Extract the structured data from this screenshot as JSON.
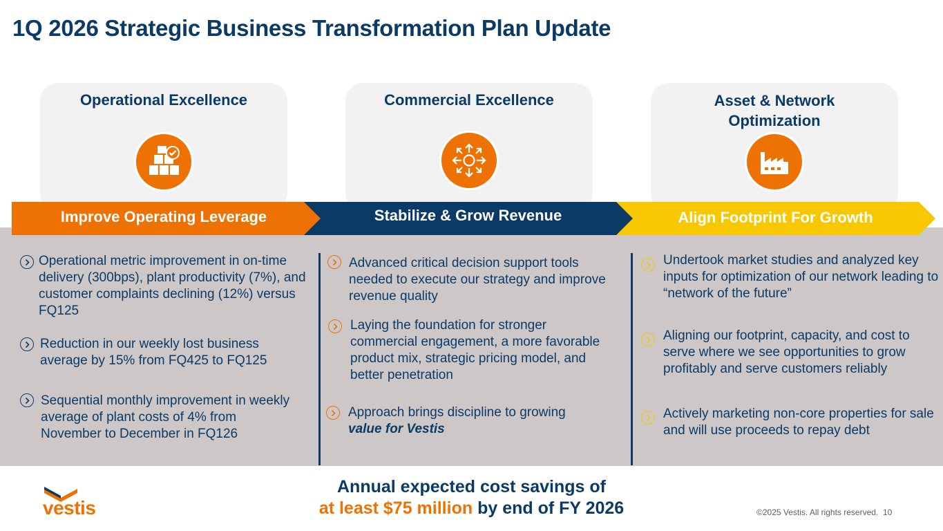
{
  "title": "1Q 2026 Strategic Business Transformation Plan Update",
  "pillars": [
    {
      "title": "Operational Excellence",
      "icon": "boxes-check-icon",
      "banner": "Improve Operating Leverage"
    },
    {
      "title": "Commercial Excellence",
      "icon": "expand-arrows-icon",
      "banner": "Stabilize & Grow Revenue"
    },
    {
      "title": "Asset & Network Optimization",
      "icon": "factory-icon",
      "banner": "Align Footprint For Growth"
    }
  ],
  "columns": [
    {
      "bullets": [
        "Operational metric improvement in on-time delivery (300bps), plant productivity (7%), and customer complaints declining (12%) versus FQ125",
        "Reduction in our weekly lost business average by 15% from FQ425 to FQ125",
        "Sequential monthly improvement in weekly average of plant costs of 4% from November to December in FQ126"
      ]
    },
    {
      "bullets": [
        "Advanced critical decision support tools needed to execute our strategy and improve revenue quality",
        "Laying the foundation for stronger commercial engagement, a more favorable product mix, strategic pricing model, and better penetration"
      ],
      "last_bullet": {
        "text": "Approach brings discipline to growing",
        "emphasis": "value for Vestis"
      }
    },
    {
      "bullets": [
        "Undertook market studies and analyzed key inputs for optimization of our network leading to “network of the future”",
        "Aligning our footprint, capacity, and cost to serve where we see opportunities to grow profitably and serve customers reliably",
        "Actively marketing non-core properties for sale and will use proceeds to repay debt"
      ]
    }
  ],
  "footer": {
    "line1": "Annual expected cost savings of",
    "line2_highlight": "at least $75 million",
    "line2_rest": " by end of FY 2026"
  },
  "logo_text": "vestis",
  "copyright": "©2025 Vestis. All rights reserved.",
  "page_number": "10",
  "colors": {
    "navy": "#0b3a66",
    "orange": "#ee7203",
    "yellow": "#f7c800",
    "band_gray": "#cdc8c7",
    "card_gray": "#f2f2f3"
  }
}
